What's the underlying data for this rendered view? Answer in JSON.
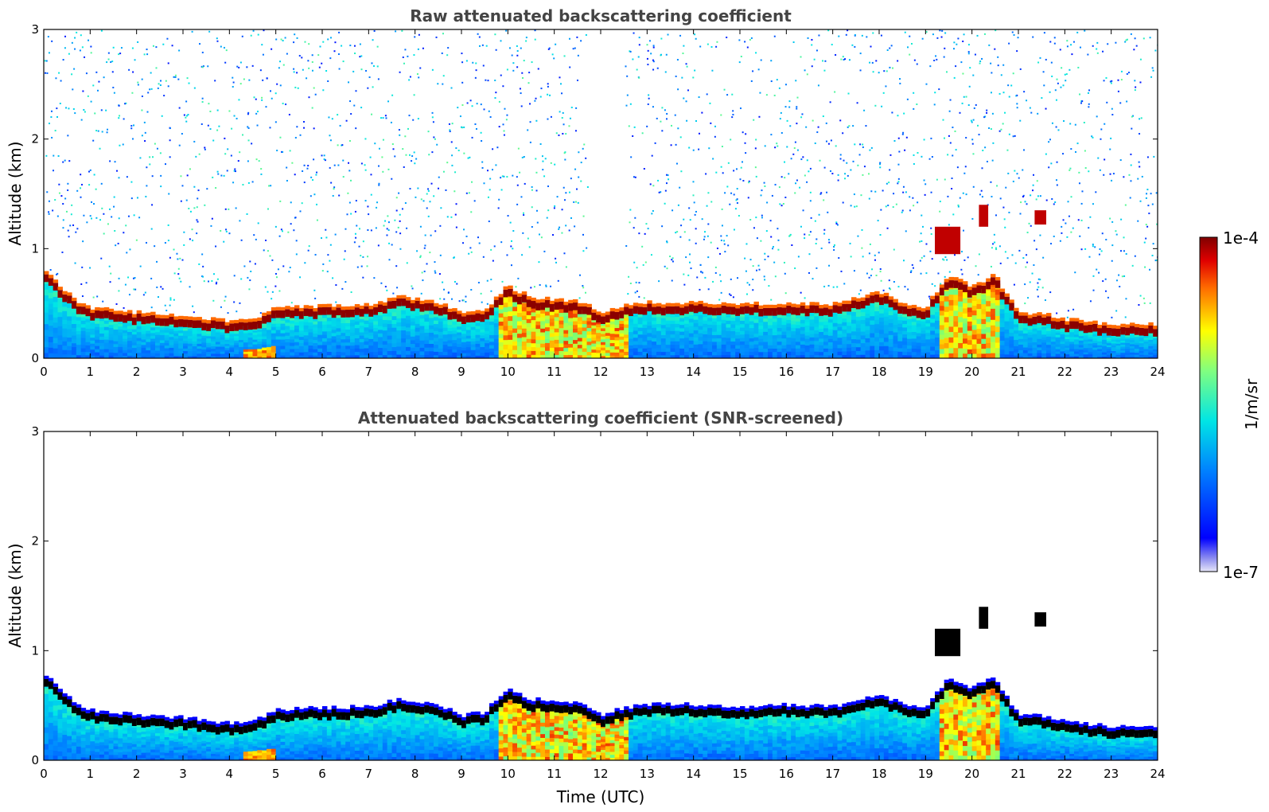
{
  "chart_data": [
    {
      "type": "heatmap",
      "title": "Raw attenuated backscattering coefficient",
      "xlabel": "",
      "ylabel": "Altitude (km)",
      "xlim": [
        0,
        24
      ],
      "ylim": [
        0,
        3
      ],
      "x_ticks": [
        "0",
        "1",
        "2",
        "3",
        "4",
        "5",
        "6",
        "7",
        "8",
        "9",
        "10",
        "11",
        "12",
        "13",
        "14",
        "15",
        "16",
        "17",
        "18",
        "19",
        "20",
        "21",
        "22",
        "23",
        "24"
      ],
      "y_ticks": [
        "0",
        "1",
        "2",
        "3"
      ],
      "screened": false,
      "layer_top_km": [
        {
          "t": 0.0,
          "z": 0.75
        },
        {
          "t": 0.6,
          "z": 0.5
        },
        {
          "t": 1.0,
          "z": 0.4
        },
        {
          "t": 2.0,
          "z": 0.36
        },
        {
          "t": 3.0,
          "z": 0.33
        },
        {
          "t": 4.0,
          "z": 0.28
        },
        {
          "t": 4.5,
          "z": 0.3
        },
        {
          "t": 5.0,
          "z": 0.4
        },
        {
          "t": 6.0,
          "z": 0.42
        },
        {
          "t": 7.0,
          "z": 0.43
        },
        {
          "t": 7.7,
          "z": 0.5
        },
        {
          "t": 8.5,
          "z": 0.45
        },
        {
          "t": 9.0,
          "z": 0.35
        },
        {
          "t": 9.5,
          "z": 0.38
        },
        {
          "t": 10.0,
          "z": 0.6
        },
        {
          "t": 10.5,
          "z": 0.5
        },
        {
          "t": 11.0,
          "z": 0.48
        },
        {
          "t": 11.7,
          "z": 0.45
        },
        {
          "t": 12.0,
          "z": 0.35
        },
        {
          "t": 12.5,
          "z": 0.42
        },
        {
          "t": 13.0,
          "z": 0.45
        },
        {
          "t": 14.0,
          "z": 0.45
        },
        {
          "t": 15.0,
          "z": 0.43
        },
        {
          "t": 16.0,
          "z": 0.45
        },
        {
          "t": 17.0,
          "z": 0.43
        },
        {
          "t": 18.0,
          "z": 0.55
        },
        {
          "t": 18.5,
          "z": 0.45
        },
        {
          "t": 19.0,
          "z": 0.4
        },
        {
          "t": 19.5,
          "z": 0.7
        },
        {
          "t": 20.0,
          "z": 0.6
        },
        {
          "t": 20.5,
          "z": 0.7
        },
        {
          "t": 21.0,
          "z": 0.35
        },
        {
          "t": 21.5,
          "z": 0.35
        },
        {
          "t": 22.0,
          "z": 0.3
        },
        {
          "t": 23.0,
          "z": 0.25
        },
        {
          "t": 24.0,
          "z": 0.25
        }
      ],
      "elevated_clouds": [
        {
          "t0": 19.2,
          "t1": 19.75,
          "z0": 0.95,
          "z1": 1.2
        },
        {
          "t0": 20.15,
          "t1": 20.35,
          "z0": 1.2,
          "z1": 1.4
        },
        {
          "t0": 21.35,
          "t1": 21.6,
          "z0": 1.22,
          "z1": 1.35
        }
      ],
      "data_gap": {
        "t0": 11.75,
        "t1": 12.5
      }
    },
    {
      "type": "heatmap",
      "title": "Attenuated backscattering coefficient (SNR-screened)",
      "xlabel": "Time (UTC)",
      "ylabel": "Altitude (km)",
      "xlim": [
        0,
        24
      ],
      "ylim": [
        0,
        3
      ],
      "x_ticks": [
        "0",
        "1",
        "2",
        "3",
        "4",
        "5",
        "6",
        "7",
        "8",
        "9",
        "10",
        "11",
        "12",
        "13",
        "14",
        "15",
        "16",
        "17",
        "18",
        "19",
        "20",
        "21",
        "22",
        "23",
        "24"
      ],
      "y_ticks": [
        "0",
        "1",
        "2",
        "3"
      ],
      "screened": true
    }
  ],
  "colorbar": {
    "max_label": "1e-4",
    "min_label": "1e-7",
    "unit_label": "1/m/sr",
    "colormap": "jet",
    "scale": "log"
  }
}
